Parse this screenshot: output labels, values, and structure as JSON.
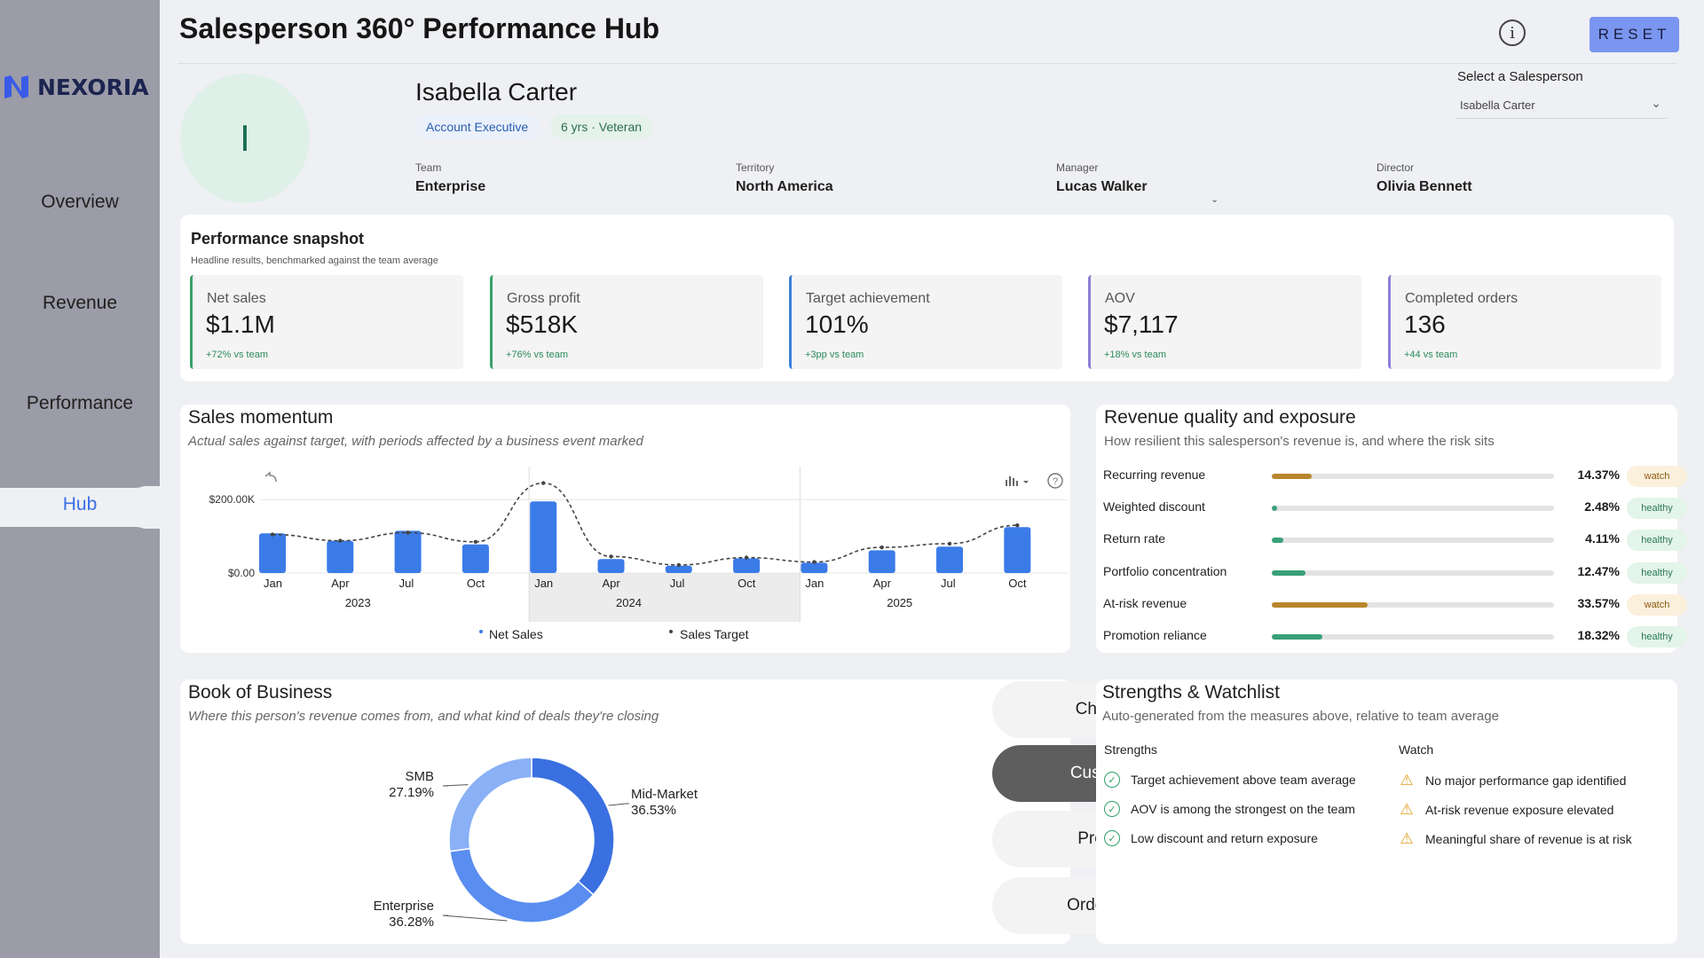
{
  "app": {
    "title": "Salesperson 360° Performance Hub",
    "logo_text": "NEXORIA",
    "reset_label": "RESET",
    "info_glyph": "i"
  },
  "sidebar": {
    "items": [
      {
        "label": "Overview",
        "active": false
      },
      {
        "label": "Revenue",
        "active": false
      },
      {
        "label": "Performance",
        "active": false
      },
      {
        "label": "Hub",
        "active": true
      }
    ]
  },
  "profile": {
    "initial": "I",
    "name": "Isabella Carter",
    "role": "Account Executive",
    "tenure": "6 yrs · Veteran",
    "team_label": "Team",
    "team": "Enterprise",
    "territory_label": "Territory",
    "territory": "North America",
    "manager_label": "Manager",
    "manager": "Lucas Walker",
    "director_label": "Director",
    "director": "Olivia Bennett"
  },
  "selector": {
    "label": "Select a Salesperson",
    "value": "Isabella Carter"
  },
  "snapshot": {
    "title": "Performance snapshot",
    "subtitle": "Headline results, benchmarked against the team average",
    "kpis": [
      {
        "label": "Net sales",
        "value": "$1.1M",
        "delta": "+72% vs team",
        "accent": "#3aa06a"
      },
      {
        "label": "Gross profit",
        "value": "$518K",
        "delta": "+76% vs team",
        "accent": "#3aa06a"
      },
      {
        "label": "Target achievement",
        "value": "101%",
        "delta": "+3pp vs team",
        "accent": "#3a7fd8"
      },
      {
        "label": "AOV",
        "value": "$7,117",
        "delta": "+18% vs team",
        "accent": "#8b7fd8"
      },
      {
        "label": "Completed orders",
        "value": "136",
        "delta": "+44 vs team",
        "accent": "#8b7fd8"
      }
    ]
  },
  "momentum": {
    "title": "Sales momentum",
    "subtitle": "Actual sales against target, with periods affected by a business event marked",
    "legend_sales": "Net Sales",
    "legend_target": "Sales Target"
  },
  "revenue_quality": {
    "title": "Revenue quality and exposure",
    "subtitle": "How resilient this salesperson's revenue is, and where the risk sits",
    "rows": [
      {
        "label": "Recurring revenue",
        "value": "14.37%",
        "fill": 0.14,
        "status": "watch"
      },
      {
        "label": "Weighted discount",
        "value": "2.48%",
        "fill": 0.02,
        "status": "healthy"
      },
      {
        "label": "Return rate",
        "value": "4.11%",
        "fill": 0.04,
        "status": "healthy"
      },
      {
        "label": "Portfolio concentration",
        "value": "12.47%",
        "fill": 0.12,
        "status": "healthy"
      },
      {
        "label": "At-risk revenue",
        "value": "33.57%",
        "fill": 0.34,
        "status": "watch"
      },
      {
        "label": "Promotion reliance",
        "value": "18.32%",
        "fill": 0.18,
        "status": "healthy"
      }
    ]
  },
  "book": {
    "title": "Book of Business",
    "subtitle": "Where this person's revenue comes from, and what kind of deals they're closing",
    "buttons": [
      {
        "label": "Channel",
        "active": false
      },
      {
        "label": "Customer",
        "active": true
      },
      {
        "label": "Product",
        "active": false
      },
      {
        "label": "OrderType",
        "active": false
      }
    ]
  },
  "strengths": {
    "title": "Strengths & Watchlist",
    "subtitle": "Auto-generated from the measures above, relative to team average",
    "strengths_label": "Strengths",
    "watch_label": "Watch",
    "strengths": [
      "Target achievement above team average",
      "AOV is among the strongest on the team",
      "Low discount and return exposure"
    ],
    "watch": [
      "No major performance gap identified",
      "At-risk revenue exposure elevated",
      "Meaningful share of revenue is at risk"
    ]
  },
  "chart_data": [
    {
      "type": "bar",
      "ylim": [
        0,
        290000
      ],
      "y_ticks": [
        "$0.00",
        "$200.00K"
      ],
      "y_tick_values": [
        0,
        200000
      ],
      "categories": [
        "2023-01",
        "2023-04",
        "2023-07",
        "2023-10",
        "2024-01",
        "2024-04",
        "2024-07",
        "2024-10",
        "2025-01",
        "2025-04",
        "2025-07",
        "2025-10"
      ],
      "month_labels": [
        "Jan",
        "Apr",
        "Jul",
        "Oct",
        "Jan",
        "Apr",
        "Jul",
        "Oct",
        "Jan",
        "Apr",
        "Jul",
        "Oct"
      ],
      "year_labels": [
        "2023",
        "2024",
        "2025"
      ],
      "highlighted_period": "2024",
      "series": [
        {
          "name": "Net Sales",
          "kind": "bar",
          "color": "#3b7be8",
          "values": [
            108000,
            88000,
            115000,
            78000,
            195000,
            38000,
            20000,
            40000,
            28000,
            62000,
            72000,
            125000
          ]
        },
        {
          "name": "Sales Target",
          "kind": "line",
          "dashed": true,
          "color": "#444444",
          "values": [
            105000,
            88000,
            110000,
            85000,
            245000,
            45000,
            22000,
            42000,
            30000,
            70000,
            80000,
            130000
          ]
        }
      ]
    },
    {
      "type": "pie",
      "donut": true,
      "labels": [
        "Mid-Market",
        "Enterprise",
        "SMB"
      ],
      "values": [
        36.53,
        36.28,
        27.19
      ],
      "value_labels": [
        "36.53%",
        "36.28%",
        "27.19%"
      ],
      "colors": [
        "#3a6fe0",
        "#5a8df0",
        "#8ab0f6"
      ]
    }
  ]
}
